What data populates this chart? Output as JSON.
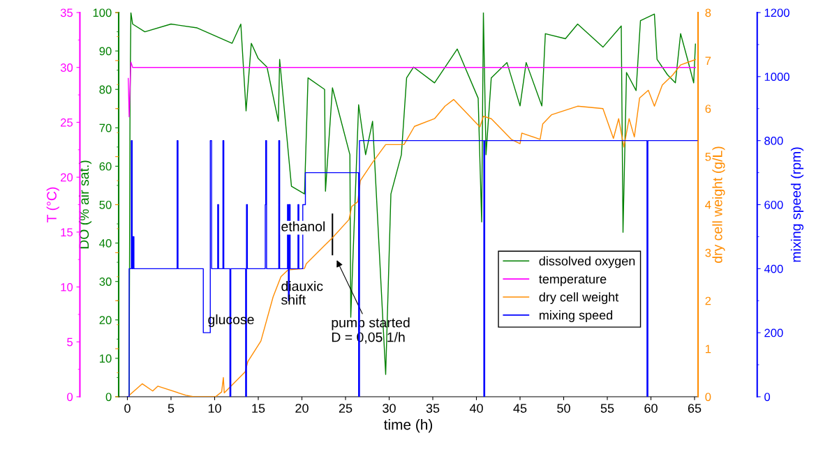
{
  "chart_data": [
    {
      "type": "line",
      "xlabel": "time (h)",
      "ylabel": "DO (% air sat.)",
      "y2label": "T (°C)",
      "xlim": [
        -1,
        65.4
      ],
      "xticks": [
        0,
        5,
        10,
        15,
        20,
        25,
        30,
        35,
        40,
        45,
        50,
        55,
        60,
        65
      ],
      "ylim": [
        0,
        100
      ],
      "yticks": [
        0,
        10,
        20,
        30,
        40,
        50,
        60,
        70,
        80,
        90,
        100
      ],
      "y2lim": [
        0,
        35
      ],
      "y2ticks": [
        0,
        5,
        10,
        15,
        20,
        25,
        30,
        35
      ],
      "grid": false,
      "legend": "right",
      "series": [
        {
          "name": "dissolved oxygen",
          "color": "#008000",
          "x": [
            0.2,
            0.3,
            0.4,
            0.6,
            2,
            5,
            8,
            10,
            12,
            13,
            13.6,
            14.2,
            15,
            16,
            17.3,
            17.45,
            18.8,
            20.3,
            20.7,
            22.6,
            22.7,
            23.5,
            25.5,
            25.6,
            26.5,
            27.3,
            28.1,
            29.6,
            30.2,
            31.4,
            32,
            32.8,
            35.2,
            37.8,
            40.2,
            40.6,
            40.8,
            41.1,
            41.7,
            43.5,
            45,
            45.7,
            47.5,
            47.9,
            50.2,
            51.6,
            54.5,
            56.6,
            56.8,
            57.2,
            58.3,
            58.8,
            60.4,
            60.7,
            61.9,
            62.8,
            63.4,
            64.2,
            64.9,
            65.1
          ],
          "values": [
            0,
            75,
            100,
            97,
            95,
            97,
            96,
            94,
            92,
            97,
            74.4,
            92,
            88,
            85.8,
            71.7,
            87.8,
            54.8,
            52.8,
            83,
            80,
            53.5,
            80.4,
            63,
            20.7,
            76,
            63,
            71.7,
            5.8,
            52.8,
            63,
            83,
            85.8,
            81.7,
            90.5,
            77.7,
            45.5,
            100,
            63,
            83,
            87,
            75.7,
            87,
            75.7,
            94.5,
            93.2,
            97,
            91,
            96.5,
            42.8,
            84.4,
            79.7,
            97.9,
            99.6,
            87.8,
            83.8,
            81.7,
            94.5,
            87.8,
            81.7,
            91.8
          ]
        },
        {
          "name": "temperature",
          "color": "#ff00ff",
          "axis": "y2",
          "x": [
            0.1,
            0.2,
            0.4,
            0.6,
            65.1
          ],
          "values": [
            29,
            25.5,
            30.5,
            30,
            30
          ]
        }
      ],
      "annotations": [
        "glucose",
        "diauxic\nshift",
        "ethanol",
        "pump started\nD = 0,05 1/h"
      ]
    },
    {
      "type": "line",
      "ylabel": "dry cell weight (g/L)",
      "y2label": "mixing speed (rpm)",
      "tick_labels": "y",
      "xlim": [
        -1,
        65.4
      ],
      "ylim": [
        0,
        8
      ],
      "yticks": [
        0,
        1,
        2,
        3,
        4,
        5,
        6,
        7,
        8
      ],
      "y2lim": [
        0,
        1200
      ],
      "y2ticks": [
        0,
        200,
        400,
        600,
        800,
        1000,
        1200
      ],
      "legend": "right",
      "series": [
        {
          "name": "dry cell weight",
          "color": "#ff8c00",
          "x": [
            0.2,
            1.7,
            2.9,
            3.5,
            6.7,
            7.6,
            10.1,
            10.8,
            11,
            11.1,
            13.5,
            13.8,
            15.3,
            16.7,
            17.6,
            18.4,
            20.3,
            20.5,
            22.6,
            23.5,
            25.4,
            25.7,
            26.4,
            26.7,
            28.1,
            29.6,
            31.7,
            32.9,
            35.2,
            36.4,
            37.4,
            40.4,
            40.8,
            41.7,
            44,
            45,
            45.2,
            47.3,
            47.6,
            48.6,
            51.6,
            54.5,
            55.7,
            56.3,
            56.9,
            57.5,
            58.1,
            58.7,
            59.7,
            60.4,
            61.3,
            62.5,
            63.4,
            65.1
          ],
          "values": [
            0.03,
            0.27,
            0.12,
            0.22,
            0.03,
            0,
            0,
            0.1,
            0.4,
            0.08,
            0.52,
            0.73,
            1.16,
            2.08,
            2.5,
            2.64,
            2.67,
            2.77,
            3.15,
            3.31,
            3.69,
            3.96,
            4.06,
            4.5,
            4.88,
            5.25,
            5.25,
            5.63,
            5.79,
            6.05,
            6.19,
            5.62,
            5.84,
            5.79,
            5.36,
            5.27,
            5.49,
            5.36,
            5.68,
            5.87,
            6.05,
            6,
            5.38,
            5.79,
            5.2,
            5.79,
            5.41,
            6.22,
            6.38,
            6.05,
            6.49,
            6.7,
            6.91,
            7.02
          ]
        },
        {
          "name": "mixing speed",
          "color": "#0000ff",
          "type": "step",
          "axis": "y2",
          "x": [
            0,
            0.2,
            0.45,
            0.55,
            0.65,
            0.75,
            5.7,
            5.8,
            8.7,
            9.5,
            9.65,
            10.35,
            10.45,
            10.95,
            11.05,
            11.75,
            11.85,
            13.55,
            13.65,
            13.75,
            15.8,
            15.85,
            15.95,
            17.35,
            17.45,
            18.35,
            18.45,
            18.55,
            18.65,
            19.55,
            19.65,
            20.1,
            20.4,
            26.5,
            26.6,
            40.85,
            40.95,
            59.55,
            59.65,
            65.3
          ],
          "values": [
            0,
            400,
            800,
            400,
            500,
            400,
            800,
            400,
            200,
            800,
            400,
            600,
            400,
            800,
            400,
            0,
            400,
            0,
            600,
            400,
            600,
            800,
            400,
            800,
            400,
            600,
            300,
            600,
            400,
            600,
            400,
            600,
            700,
            0,
            800,
            0,
            800,
            0,
            800,
            800
          ]
        }
      ]
    }
  ]
}
